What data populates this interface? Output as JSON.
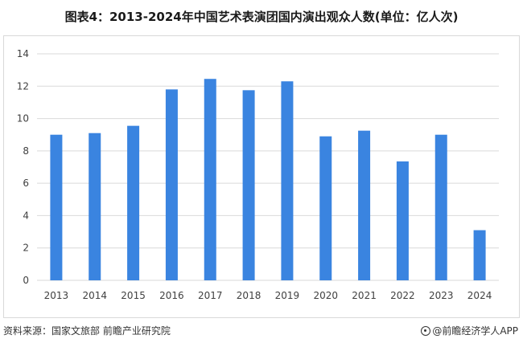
{
  "title": "图表4：2013-2024年中国艺术表演团国内演出观众人数(单位：亿人次)",
  "source": "资料来源：国家文旅部 前瞻产业研究院",
  "brand": "@前瞻经济学人APP",
  "colors": {
    "bar": "#3a84e0",
    "grid": "#d9d9d9"
  },
  "chart_data": {
    "type": "bar",
    "categories": [
      "2013",
      "2014",
      "2015",
      "2016",
      "2017",
      "2018",
      "2019",
      "2020",
      "2021",
      "2022",
      "2023",
      "2024"
    ],
    "values": [
      9.0,
      9.1,
      9.55,
      11.8,
      12.45,
      11.75,
      12.3,
      8.9,
      9.25,
      7.35,
      9.0,
      3.1
    ],
    "ylim": [
      0,
      14
    ],
    "yticks": [
      0,
      2,
      4,
      6,
      8,
      10,
      12,
      14
    ],
    "grid": true,
    "legend": "none"
  }
}
